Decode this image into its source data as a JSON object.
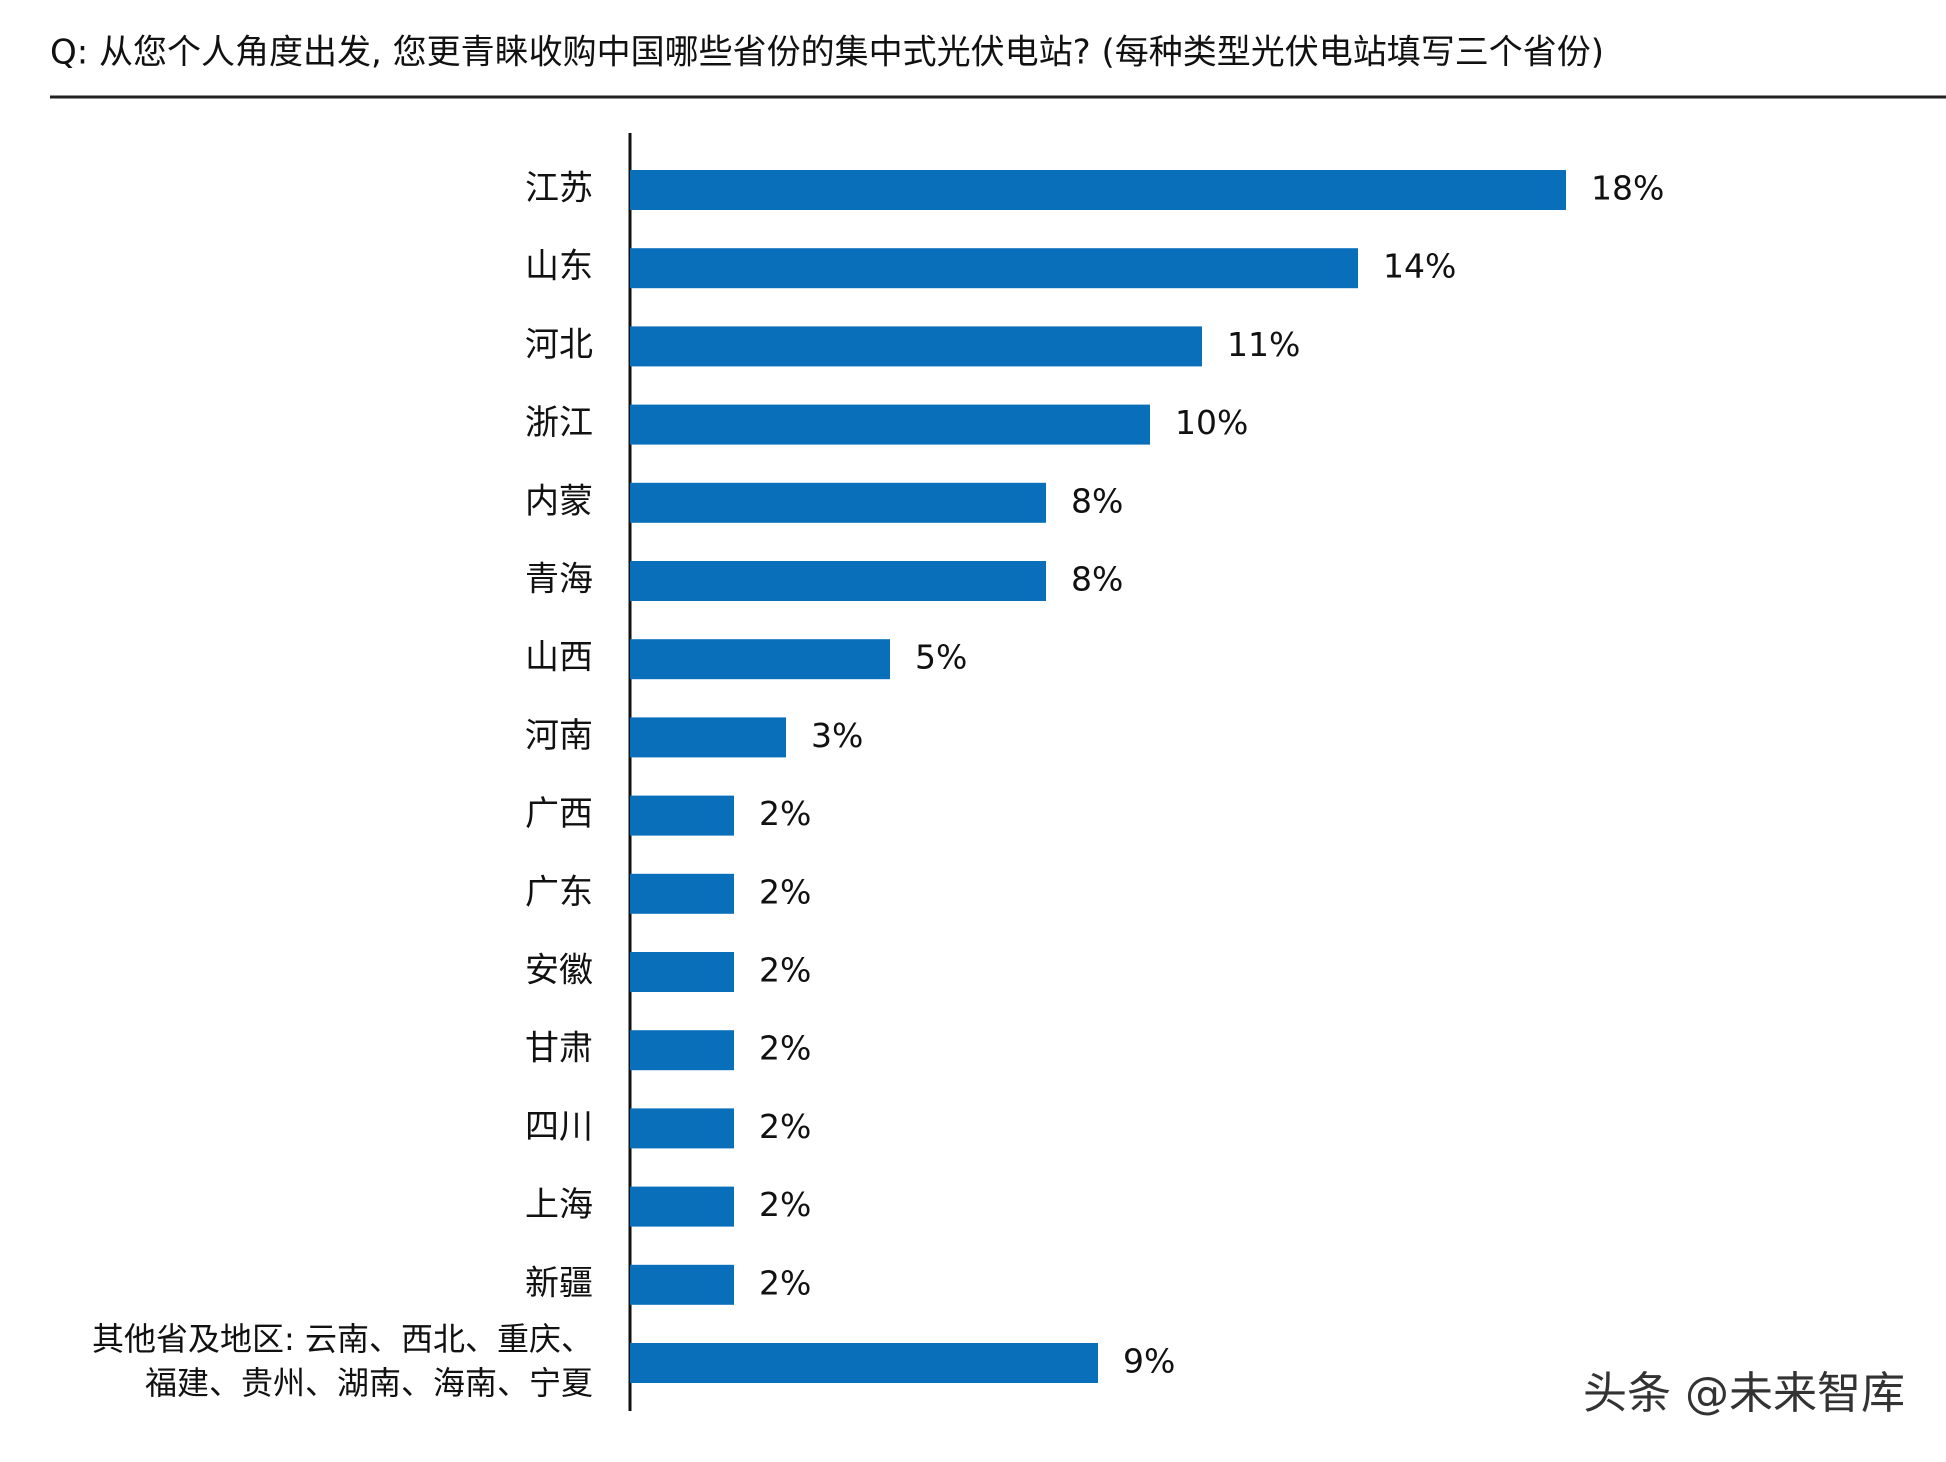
{
  "chart_data": {
    "type": "bar",
    "orientation": "horizontal",
    "title": "Q: 从您个人角度出发, 您更青睐收购中国哪些省份的集中式光伏电站? (每种类型光伏电站填写三个省份)",
    "categories": [
      "江苏",
      "山东",
      "河北",
      "浙江",
      "内蒙",
      "青海",
      "山西",
      "河南",
      "广西",
      "广东",
      "安徽",
      "甘肃",
      "四川",
      "上海",
      "新疆",
      "其他省及地区: 云南、西北、重庆、\n福建、贵州、湖南、海南、宁夏"
    ],
    "values": [
      18,
      14,
      11,
      10,
      8,
      8,
      5,
      3,
      2,
      2,
      2,
      2,
      2,
      2,
      2,
      9
    ],
    "value_labels": [
      "18%",
      "14%",
      "11%",
      "10%",
      "8%",
      "8%",
      "5%",
      "3%",
      "2%",
      "2%",
      "2%",
      "2%",
      "2%",
      "2%",
      "2%",
      "9%"
    ],
    "color": "#0a6fba",
    "watermark": "头条 @未来智库"
  }
}
